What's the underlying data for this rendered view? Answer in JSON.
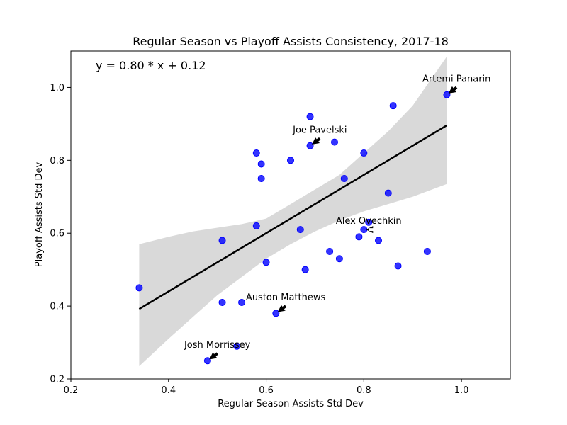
{
  "chart_data": {
    "type": "scatter",
    "title": "Regular Season vs Playoff Assists Consistency, 2017-18",
    "xlabel": "Regular Season Assists Std Dev",
    "ylabel": "Playoff Assists Std Dev",
    "xlim": [
      0.2,
      1.1
    ],
    "ylim": [
      0.2,
      1.1
    ],
    "x_ticks": [
      0.2,
      0.4,
      0.6,
      0.8,
      1.0
    ],
    "y_ticks": [
      0.2,
      0.4,
      0.6,
      0.8,
      1.0
    ],
    "x_tick_labels": [
      "0.2",
      "0.4",
      "0.6",
      "0.8",
      "1.0"
    ],
    "y_tick_labels": [
      "0.2",
      "0.4",
      "0.6",
      "0.8",
      "1.0"
    ],
    "grid": false,
    "equation": "y = 0.80 * x + 0.12",
    "point_color": "#0000ff",
    "line_color": "#000000",
    "band_color": "#d9d9d9",
    "points": [
      {
        "x": 0.34,
        "y": 0.45
      },
      {
        "x": 0.48,
        "y": 0.25
      },
      {
        "x": 0.51,
        "y": 0.58
      },
      {
        "x": 0.51,
        "y": 0.41
      },
      {
        "x": 0.54,
        "y": 0.29
      },
      {
        "x": 0.55,
        "y": 0.41
      },
      {
        "x": 0.58,
        "y": 0.82
      },
      {
        "x": 0.58,
        "y": 0.62
      },
      {
        "x": 0.59,
        "y": 0.79
      },
      {
        "x": 0.59,
        "y": 0.75
      },
      {
        "x": 0.6,
        "y": 0.52
      },
      {
        "x": 0.62,
        "y": 0.38
      },
      {
        "x": 0.65,
        "y": 0.8
      },
      {
        "x": 0.67,
        "y": 0.61
      },
      {
        "x": 0.68,
        "y": 0.5
      },
      {
        "x": 0.69,
        "y": 0.92
      },
      {
        "x": 0.69,
        "y": 0.84
      },
      {
        "x": 0.73,
        "y": 0.55
      },
      {
        "x": 0.74,
        "y": 0.85
      },
      {
        "x": 0.75,
        "y": 0.53
      },
      {
        "x": 0.76,
        "y": 0.75
      },
      {
        "x": 0.79,
        "y": 0.59
      },
      {
        "x": 0.8,
        "y": 0.82
      },
      {
        "x": 0.8,
        "y": 0.61
      },
      {
        "x": 0.81,
        "y": 0.63
      },
      {
        "x": 0.83,
        "y": 0.58
      },
      {
        "x": 0.85,
        "y": 0.71
      },
      {
        "x": 0.86,
        "y": 0.95
      },
      {
        "x": 0.87,
        "y": 0.51
      },
      {
        "x": 0.93,
        "y": 0.55
      },
      {
        "x": 0.97,
        "y": 0.98
      }
    ],
    "regression": {
      "slope": 0.8,
      "intercept": 0.12,
      "x_range": [
        0.34,
        0.97
      ]
    },
    "confidence_band": [
      {
        "x": 0.34,
        "lower": 0.235,
        "upper": 0.57
      },
      {
        "x": 0.4,
        "lower": 0.31,
        "upper": 0.59
      },
      {
        "x": 0.45,
        "lower": 0.37,
        "upper": 0.605
      },
      {
        "x": 0.5,
        "lower": 0.43,
        "upper": 0.615
      },
      {
        "x": 0.55,
        "lower": 0.48,
        "upper": 0.625
      },
      {
        "x": 0.6,
        "lower": 0.53,
        "upper": 0.64
      },
      {
        "x": 0.65,
        "lower": 0.57,
        "upper": 0.68
      },
      {
        "x": 0.7,
        "lower": 0.605,
        "upper": 0.72
      },
      {
        "x": 0.75,
        "lower": 0.635,
        "upper": 0.76
      },
      {
        "x": 0.8,
        "lower": 0.66,
        "upper": 0.82
      },
      {
        "x": 0.85,
        "lower": 0.68,
        "upper": 0.88
      },
      {
        "x": 0.9,
        "lower": 0.7,
        "upper": 0.95
      },
      {
        "x": 0.97,
        "lower": 0.735,
        "upper": 1.085
      }
    ],
    "annotations": [
      {
        "label": "Artemi Panarin",
        "point": {
          "x": 0.97,
          "y": 0.98
        },
        "text_at": {
          "x": 0.99,
          "y": 1.0
        }
      },
      {
        "label": "Joe Pavelski",
        "point": {
          "x": 0.69,
          "y": 0.84
        },
        "text_at": {
          "x": 0.71,
          "y": 0.86
        }
      },
      {
        "label": "Alex Ovechkin",
        "point": {
          "x": 0.8,
          "y": 0.61
        },
        "text_at": {
          "x": 0.81,
          "y": 0.61
        }
      },
      {
        "label": "Auston Matthews",
        "point": {
          "x": 0.62,
          "y": 0.38
        },
        "text_at": {
          "x": 0.64,
          "y": 0.4
        }
      },
      {
        "label": "Josh Morrissey",
        "point": {
          "x": 0.48,
          "y": 0.25
        },
        "text_at": {
          "x": 0.5,
          "y": 0.27
        }
      }
    ]
  }
}
